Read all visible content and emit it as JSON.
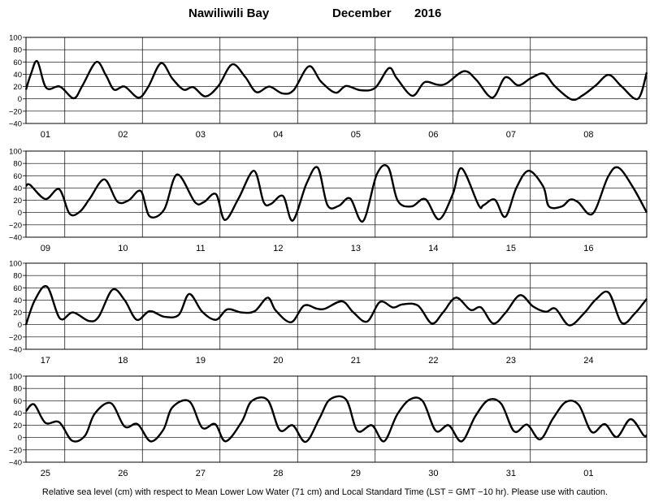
{
  "header": {
    "location": "Nawiliwili Bay",
    "month": "December",
    "year": "2016"
  },
  "footer": {
    "note": "Relative sea level (cm) with respect to Mean Lower Low Water (71 cm) and Local Standard Time (LST = GMT −10 hr). Please use with caution."
  },
  "chart_data": {
    "type": "line",
    "y_axis": {
      "range": [
        -40,
        100
      ],
      "ticks": [
        -40,
        -20,
        0,
        20,
        40,
        60,
        80,
        100
      ],
      "tick_labels": [
        "−40",
        "−20",
        "0",
        "20",
        "40",
        "60",
        "80",
        "100"
      ]
    },
    "grid": "day boundaries and y ticks",
    "line_color": "#000000",
    "panels": [
      {
        "day_labels": [
          "01",
          "02",
          "03",
          "04",
          "05",
          "06",
          "07",
          "08"
        ],
        "x": [
          0,
          1.5,
          3.5,
          6.25,
          10.5,
          14.75,
          17.5,
          21.75,
          24.75,
          27.25,
          30.5,
          34.75,
          37.75,
          41.75,
          45.25,
          48.75,
          51.75,
          55.5,
          59.5,
          63.75,
          67.75,
          71.25,
          75.25,
          79.25,
          82.75,
          87.5,
          91.25,
          95.75,
          99,
          103.5,
          108,
          112.25,
          114.75,
          119.5,
          123.25,
          127.25,
          130,
          135.5,
          139.25,
          144.25,
          148.25,
          152.25,
          156.25,
          160.25,
          163.5,
          168.75,
          172.25,
          176.25,
          180.25,
          184.25,
          189.25,
          192
        ],
        "y": [
          15,
          40,
          61,
          18,
          20,
          1,
          22,
          60,
          38,
          15,
          20,
          2,
          19,
          58,
          33,
          15,
          19,
          4,
          21,
          56,
          36,
          11,
          20,
          9,
          14,
          53,
          28,
          10,
          21,
          14,
          18,
          50,
          33,
          5,
          27,
          23,
          25,
          45,
          31,
          2,
          35,
          22,
          34,
          41,
          21,
          -1,
          6,
          22,
          39,
          20,
          0,
          43
        ]
      },
      {
        "day_labels": [
          "09",
          "10",
          "11",
          "12",
          "13",
          "14",
          "15",
          "16"
        ],
        "x": [
          0,
          1.25,
          6,
          10.25,
          13.5,
          16.75,
          19.75,
          24.25,
          28.25,
          31.75,
          35.5,
          38.25,
          42.75,
          46.75,
          52.25,
          55,
          58.75,
          61.5,
          65.75,
          70.5,
          73.5,
          75.75,
          79.5,
          82.5,
          86.75,
          90.25,
          93.25,
          96.75,
          100.25,
          104.25,
          108.5,
          112,
          115,
          119.25,
          123.5,
          127.75,
          132,
          134.75,
          140,
          141.5,
          145,
          148.25,
          151.75,
          155.5,
          160,
          161.75,
          165.75,
          168.25,
          170.75,
          175.25,
          180,
          183.25,
          187.75,
          192
        ],
        "y": [
          43,
          45,
          22,
          38,
          -2,
          2,
          23,
          54,
          18,
          20,
          35,
          -6,
          5,
          62,
          17,
          17,
          30,
          -12,
          23,
          68,
          17,
          14,
          27,
          -13,
          47,
          73,
          12,
          11,
          23,
          -14,
          62,
          74,
          19,
          10,
          22,
          -11,
          30,
          72,
          12,
          12,
          21,
          -7,
          41,
          68,
          42,
          10,
          10,
          21,
          17,
          -2,
          58,
          73,
          41,
          0
        ]
      },
      {
        "day_labels": [
          "17",
          "18",
          "19",
          "20",
          "21",
          "22",
          "23",
          "24"
        ],
        "x": [
          0,
          2.75,
          6.5,
          10.5,
          14.5,
          19.5,
          22.5,
          26.75,
          30.5,
          34.25,
          38.25,
          42.75,
          47.25,
          50.5,
          54.5,
          58.75,
          62.25,
          66.5,
          70.75,
          74.75,
          77.25,
          82,
          86,
          90,
          92.5,
          97.75,
          101.25,
          105.5,
          109.5,
          113.5,
          116.5,
          121.25,
          125.5,
          129,
          133,
          137.5,
          140.75,
          144.5,
          148.25,
          152.75,
          156.75,
          160.75,
          163.75,
          168,
          172.5,
          176.25,
          180.25,
          184.25,
          188.25,
          192
        ],
        "y": [
          0,
          40,
          62,
          10,
          20,
          6,
          13,
          57,
          40,
          8,
          22,
          13,
          16,
          50,
          21,
          8,
          25,
          20,
          22,
          44,
          23,
          4,
          31,
          26,
          26,
          38,
          20,
          5,
          37,
          28,
          33,
          31,
          2,
          20,
          44,
          24,
          28,
          2,
          19,
          48,
          30,
          21,
          26,
          -1,
          18,
          41,
          52,
          3,
          18,
          42
        ]
      },
      {
        "day_labels": [
          "25",
          "26",
          "27",
          "28",
          "29",
          "30",
          "31",
          "01"
        ],
        "x": [
          0,
          2.5,
          6,
          10.25,
          14.25,
          18.25,
          21.25,
          26.25,
          30.5,
          34.5,
          38.5,
          42.5,
          45.25,
          50.5,
          54.5,
          58.5,
          61.75,
          66.75,
          69.75,
          74.75,
          78.5,
          82.5,
          86.5,
          90.75,
          94,
          99,
          102.5,
          107,
          110.75,
          114.75,
          118.75,
          122.75,
          126.75,
          130.75,
          134.75,
          139,
          143,
          147,
          151,
          155,
          159,
          163,
          167,
          171,
          175,
          179,
          182.75,
          187,
          191,
          192
        ],
        "y": [
          43,
          54,
          24,
          25,
          -5,
          3,
          39,
          56,
          18,
          22,
          -6,
          13,
          49,
          59,
          16,
          22,
          -6,
          26,
          59,
          61,
          12,
          20,
          -7,
          31,
          62,
          62,
          11,
          20,
          -6,
          37,
          62,
          59,
          11,
          20,
          -6,
          35,
          61,
          55,
          10,
          21,
          -3,
          31,
          58,
          53,
          9,
          22,
          1,
          30,
          4,
          4
        ]
      }
    ]
  }
}
